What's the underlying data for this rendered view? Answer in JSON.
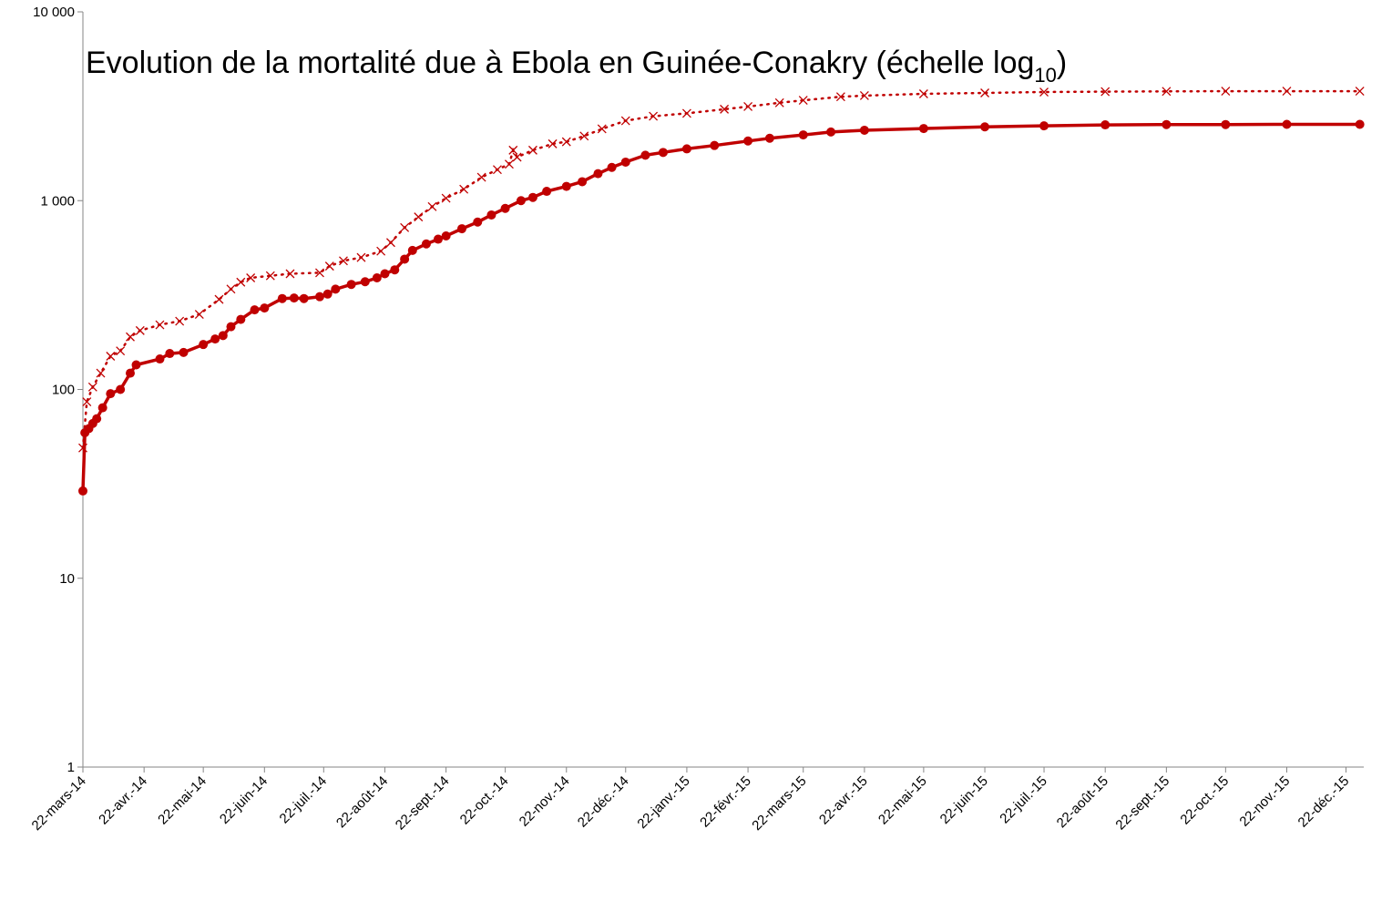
{
  "chart_data": {
    "type": "line",
    "title": "Evolution de la mortalité due à Ebola en Guinée-Conakry (échelle log",
    "title_subscript": "10",
    "title_suffix": ")",
    "xlabel": "",
    "ylabel": "",
    "y_scale": "log10",
    "ylim": [
      1,
      10000
    ],
    "y_ticks": [
      1,
      10,
      100,
      1000,
      10000
    ],
    "y_tick_labels": [
      "1",
      "10",
      "100",
      "1 000",
      "10 000"
    ],
    "xlim": [
      "2014-03-22",
      "2015-12-31"
    ],
    "x_ticks": [
      "2014-03-22",
      "2014-04-22",
      "2014-05-22",
      "2014-06-22",
      "2014-07-22",
      "2014-08-22",
      "2014-09-22",
      "2014-10-22",
      "2014-11-22",
      "2014-12-22",
      "2015-01-22",
      "2015-02-22",
      "2015-03-22",
      "2015-04-22",
      "2015-05-22",
      "2015-06-22",
      "2015-07-22",
      "2015-08-22",
      "2015-09-22",
      "2015-10-22",
      "2015-11-22",
      "2015-12-22"
    ],
    "x_tick_labels": [
      "22-mars-14",
      "22-avr.-14",
      "22-mai-14",
      "22-juin-14",
      "22-juil.-14",
      "22-août-14",
      "22-sept.-14",
      "22-oct.-14",
      "22-nov.-14",
      "22-déc.-14",
      "22-janv.-15",
      "22-févr.-15",
      "22-mars-15",
      "22-avr.-15",
      "22-mai-15",
      "22-juin-15",
      "22-juil.-15",
      "22-août-15",
      "22-sept.-15",
      "22-oct.-15",
      "22-nov.-15",
      "22-déc.-15"
    ],
    "grid": false,
    "legend": "none",
    "colors": {
      "series": "#c00000",
      "axis": "#868686"
    },
    "series": [
      {
        "style": "dotted-cross",
        "points": [
          [
            "2014-03-22",
            49
          ],
          [
            "2014-03-24",
            86
          ],
          [
            "2014-03-27",
            103
          ],
          [
            "2014-03-31",
            122
          ],
          [
            "2014-04-05",
            150
          ],
          [
            "2014-04-10",
            160
          ],
          [
            "2014-04-15",
            190
          ],
          [
            "2014-04-20",
            205
          ],
          [
            "2014-04-30",
            220
          ],
          [
            "2014-05-10",
            230
          ],
          [
            "2014-05-20",
            250
          ],
          [
            "2014-05-30",
            300
          ],
          [
            "2014-06-05",
            340
          ],
          [
            "2014-06-10",
            370
          ],
          [
            "2014-06-15",
            390
          ],
          [
            "2014-06-25",
            400
          ],
          [
            "2014-07-05",
            410
          ],
          [
            "2014-07-20",
            415
          ],
          [
            "2014-07-25",
            450
          ],
          [
            "2014-08-01",
            480
          ],
          [
            "2014-08-10",
            500
          ],
          [
            "2014-08-20",
            540
          ],
          [
            "2014-08-25",
            600
          ],
          [
            "2014-09-01",
            720
          ],
          [
            "2014-09-08",
            820
          ],
          [
            "2014-09-15",
            930
          ],
          [
            "2014-09-22",
            1030
          ],
          [
            "2014-10-01",
            1150
          ],
          [
            "2014-10-10",
            1330
          ],
          [
            "2014-10-18",
            1460
          ],
          [
            "2014-10-24",
            1560
          ],
          [
            "2014-10-26",
            1850
          ],
          [
            "2014-10-28",
            1700
          ],
          [
            "2014-11-05",
            1850
          ],
          [
            "2014-11-15",
            2000
          ],
          [
            "2014-11-22",
            2050
          ],
          [
            "2014-12-01",
            2200
          ],
          [
            "2014-12-10",
            2400
          ],
          [
            "2014-12-22",
            2650
          ],
          [
            "2015-01-05",
            2800
          ],
          [
            "2015-01-22",
            2900
          ],
          [
            "2015-02-10",
            3050
          ],
          [
            "2015-02-22",
            3150
          ],
          [
            "2015-03-10",
            3300
          ],
          [
            "2015-03-22",
            3400
          ],
          [
            "2015-04-10",
            3550
          ],
          [
            "2015-04-22",
            3600
          ],
          [
            "2015-05-22",
            3680
          ],
          [
            "2015-06-22",
            3720
          ],
          [
            "2015-07-22",
            3760
          ],
          [
            "2015-08-22",
            3780
          ],
          [
            "2015-09-22",
            3790
          ],
          [
            "2015-10-22",
            3800
          ],
          [
            "2015-11-22",
            3800
          ],
          [
            "2015-12-29",
            3800
          ]
        ]
      },
      {
        "style": "solid-circle",
        "points": [
          [
            "2014-03-22",
            29
          ],
          [
            "2014-03-23",
            59
          ],
          [
            "2014-03-25",
            62
          ],
          [
            "2014-03-27",
            66
          ],
          [
            "2014-03-29",
            70
          ],
          [
            "2014-04-01",
            80
          ],
          [
            "2014-04-05",
            95
          ],
          [
            "2014-04-10",
            100
          ],
          [
            "2014-04-15",
            122
          ],
          [
            "2014-04-18",
            135
          ],
          [
            "2014-04-30",
            145
          ],
          [
            "2014-05-05",
            155
          ],
          [
            "2014-05-12",
            157
          ],
          [
            "2014-05-22",
            173
          ],
          [
            "2014-05-28",
            185
          ],
          [
            "2014-06-01",
            193
          ],
          [
            "2014-06-05",
            215
          ],
          [
            "2014-06-10",
            235
          ],
          [
            "2014-06-17",
            264
          ],
          [
            "2014-06-22",
            270
          ],
          [
            "2014-07-01",
            303
          ],
          [
            "2014-07-07",
            305
          ],
          [
            "2014-07-12",
            303
          ],
          [
            "2014-07-20",
            310
          ],
          [
            "2014-07-24",
            320
          ],
          [
            "2014-07-28",
            340
          ],
          [
            "2014-08-05",
            360
          ],
          [
            "2014-08-12",
            372
          ],
          [
            "2014-08-18",
            390
          ],
          [
            "2014-08-22",
            410
          ],
          [
            "2014-08-27",
            430
          ],
          [
            "2014-09-01",
            490
          ],
          [
            "2014-09-05",
            545
          ],
          [
            "2014-09-12",
            590
          ],
          [
            "2014-09-18",
            625
          ],
          [
            "2014-09-22",
            650
          ],
          [
            "2014-09-30",
            710
          ],
          [
            "2014-10-08",
            770
          ],
          [
            "2014-10-15",
            840
          ],
          [
            "2014-10-22",
            910
          ],
          [
            "2014-10-30",
            1000
          ],
          [
            "2014-11-05",
            1040
          ],
          [
            "2014-11-12",
            1120
          ],
          [
            "2014-11-22",
            1190
          ],
          [
            "2014-11-30",
            1260
          ],
          [
            "2014-12-08",
            1390
          ],
          [
            "2014-12-15",
            1500
          ],
          [
            "2014-12-22",
            1600
          ],
          [
            "2015-01-01",
            1740
          ],
          [
            "2015-01-10",
            1800
          ],
          [
            "2015-01-22",
            1880
          ],
          [
            "2015-02-05",
            1960
          ],
          [
            "2015-02-22",
            2070
          ],
          [
            "2015-03-05",
            2140
          ],
          [
            "2015-03-22",
            2230
          ],
          [
            "2015-04-05",
            2310
          ],
          [
            "2015-04-22",
            2360
          ],
          [
            "2015-05-22",
            2410
          ],
          [
            "2015-06-22",
            2460
          ],
          [
            "2015-07-22",
            2490
          ],
          [
            "2015-08-22",
            2520
          ],
          [
            "2015-09-22",
            2530
          ],
          [
            "2015-10-22",
            2530
          ],
          [
            "2015-11-22",
            2536
          ],
          [
            "2015-12-29",
            2536
          ]
        ]
      }
    ]
  }
}
